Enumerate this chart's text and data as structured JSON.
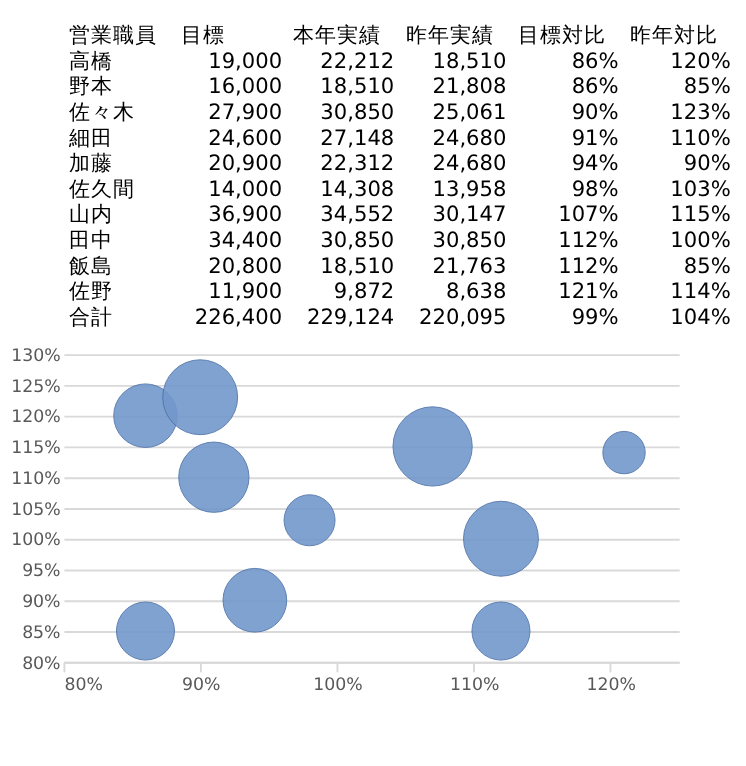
{
  "chart_data": [
    {
      "type": "other",
      "categories": [
        "営業職員",
        "目標",
        "本年実績",
        "昨年実績",
        "目標対比",
        "昨年対比"
      ],
      "y_categories": [
        "高橋",
        "野本",
        "佐々木",
        "細田",
        "加藤",
        "佐久間",
        "山内",
        "田中",
        "飯島",
        "佐野",
        "合計"
      ],
      "cell_labels": [
        [
          "19,000",
          "22,212",
          "18,510",
          "86%",
          "120%"
        ],
        [
          "16,000",
          "18,510",
          "21,808",
          "86%",
          "85%"
        ],
        [
          "27,900",
          "30,850",
          "25,061",
          "90%",
          "123%"
        ],
        [
          "24,600",
          "27,148",
          "24,680",
          "91%",
          "110%"
        ],
        [
          "20,900",
          "22,312",
          "24,680",
          "94%",
          "90%"
        ],
        [
          "14,000",
          "14,308",
          "13,958",
          "98%",
          "103%"
        ],
        [
          "36,900",
          "34,552",
          "30,147",
          "107%",
          "115%"
        ],
        [
          "34,400",
          "30,850",
          "30,850",
          "112%",
          "100%"
        ],
        [
          "20,800",
          "18,510",
          "21,763",
          "112%",
          "85%"
        ],
        [
          "11,900",
          "9,872",
          "8,638",
          "121%",
          "114%"
        ],
        [
          "226,400",
          "229,124",
          "220,095",
          "99%",
          "104%"
        ]
      ]
    },
    {
      "type": "bubble",
      "color": "#7398cc",
      "x": [
        86,
        86,
        90,
        91,
        94,
        98,
        107,
        112,
        112,
        121
      ],
      "values": [
        120,
        85,
        123,
        110,
        90,
        103,
        115,
        100,
        85,
        114
      ],
      "sizes": [
        0.643,
        0.536,
        0.893,
        0.786,
        0.646,
        0.414,
        1,
        0.893,
        0.536,
        0.286
      ],
      "xlim": [
        80,
        125
      ],
      "xticks": [
        {
          "value": 80,
          "label": "80%"
        },
        {
          "value": 90,
          "label": "90%"
        },
        {
          "value": 100,
          "label": "100%"
        },
        {
          "value": 110,
          "label": "110%"
        },
        {
          "value": 120,
          "label": "120%"
        }
      ],
      "ylim": [
        80,
        130
      ],
      "yticks": [
        {
          "value": 80,
          "label": "80%"
        },
        {
          "value": 85,
          "label": "85%"
        },
        {
          "value": 90,
          "label": "90%"
        },
        {
          "value": 95,
          "label": "95%"
        },
        {
          "value": 100,
          "label": "100%"
        },
        {
          "value": 105,
          "label": "105%"
        },
        {
          "value": 110,
          "label": "110%"
        },
        {
          "value": 115,
          "label": "115%"
        },
        {
          "value": 120,
          "label": "120%"
        },
        {
          "value": 125,
          "label": "125%"
        },
        {
          "value": 130,
          "label": "130%"
        }
      ],
      "grid": "y"
    }
  ]
}
